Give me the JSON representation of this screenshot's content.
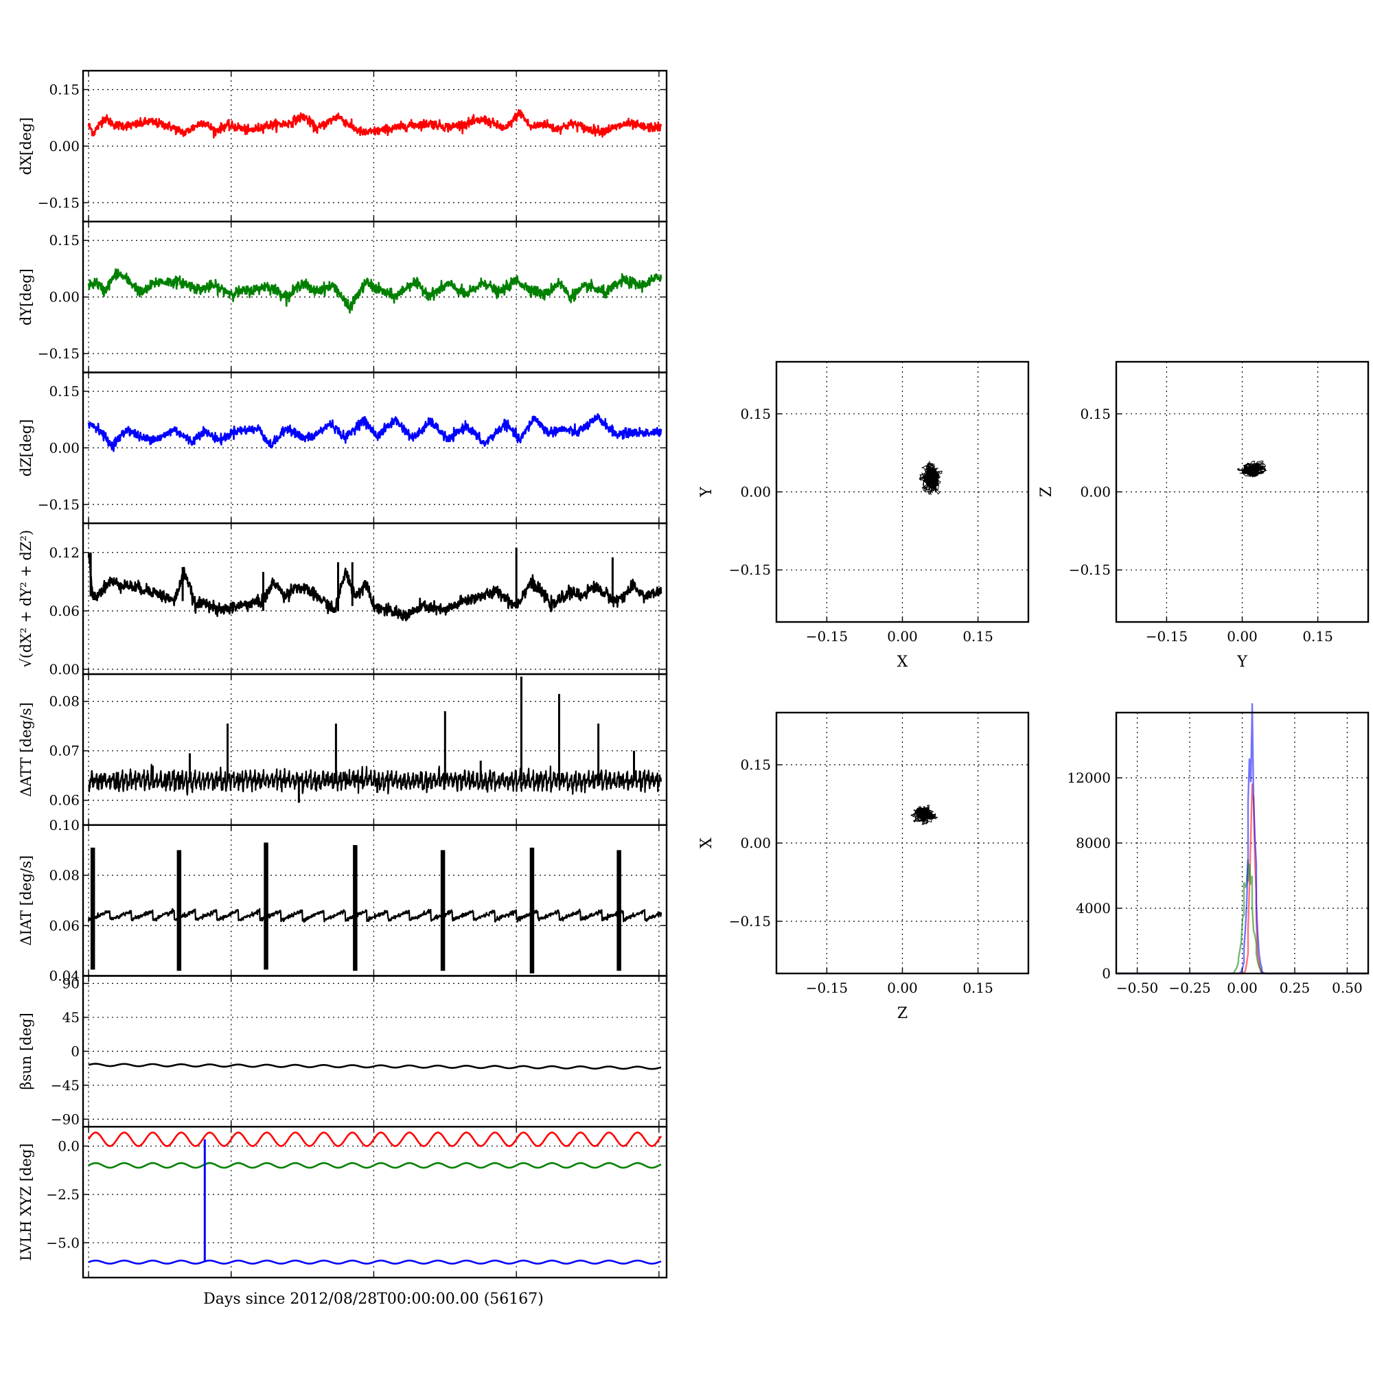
{
  "figure": {
    "xlabel": "Days since 2012/08/28T00:00:00.00 (56167)",
    "colors": {
      "x": "#ff0000",
      "y": "#008000",
      "z": "#0000ff",
      "black": "#000000"
    }
  },
  "chart_data": [
    {
      "type": "line",
      "ylabel": "dX[deg]",
      "ylim": [
        -0.2,
        0.2
      ],
      "yticks": [
        0.15,
        0.0,
        -0.15
      ],
      "ytick_labels": [
        "0.15",
        "0.00",
        "−0.15"
      ],
      "grid": true,
      "xlim": [
        0,
        8.03
      ],
      "x_gridlines": [
        0,
        2,
        4,
        6,
        8
      ],
      "series": [
        {
          "color": "#ff0000",
          "noise": 0.006,
          "x": [
            0,
            0.07,
            0.22,
            0.38,
            0.62,
            0.85,
            1.1,
            1.35,
            1.6,
            1.78,
            1.92,
            2.1,
            2.25,
            2.5,
            2.8,
            3.02,
            3.2,
            3.5,
            3.7,
            3.85,
            4.05,
            4.2,
            4.5,
            4.8,
            5.05,
            5.3,
            5.55,
            5.85,
            6.05,
            6.2,
            6.4,
            6.55,
            6.8,
            7.0,
            7.2,
            7.4,
            7.55,
            7.8,
            8.03
          ],
          "y": [
            0.055,
            0.035,
            0.075,
            0.055,
            0.055,
            0.065,
            0.055,
            0.035,
            0.065,
            0.04,
            0.055,
            0.05,
            0.04,
            0.055,
            0.06,
            0.08,
            0.045,
            0.08,
            0.05,
            0.035,
            0.04,
            0.045,
            0.055,
            0.06,
            0.05,
            0.06,
            0.07,
            0.045,
            0.09,
            0.05,
            0.06,
            0.045,
            0.06,
            0.045,
            0.04,
            0.05,
            0.06,
            0.05,
            0.05
          ]
        }
      ]
    },
    {
      "type": "line",
      "ylabel": "dY[deg]",
      "ylim": [
        -0.2,
        0.2
      ],
      "yticks": [
        0.15,
        0.0,
        -0.15
      ],
      "ytick_labels": [
        "0.15",
        "0.00",
        "−0.15"
      ],
      "grid": true,
      "xlim": [
        0,
        8.03
      ],
      "x_gridlines": [
        0,
        2,
        4,
        6,
        8
      ],
      "series": [
        {
          "color": "#008000",
          "noise": 0.007,
          "x": [
            0,
            0.1,
            0.22,
            0.4,
            0.55,
            0.75,
            0.95,
            1.3,
            1.55,
            1.75,
            2.0,
            2.35,
            2.5,
            2.8,
            3.0,
            3.15,
            3.45,
            3.65,
            3.9,
            4.0,
            4.3,
            4.55,
            4.8,
            5.05,
            5.3,
            5.55,
            5.75,
            6.0,
            6.15,
            6.4,
            6.6,
            6.75,
            7.0,
            7.25,
            7.5,
            7.75,
            8.03
          ],
          "y": [
            0.03,
            0.04,
            0.015,
            0.065,
            0.045,
            0.01,
            0.04,
            0.04,
            0.02,
            0.03,
            0.01,
            0.02,
            0.03,
            0.0,
            0.04,
            0.015,
            0.03,
            -0.03,
            0.04,
            0.025,
            0.0,
            0.04,
            0.005,
            0.035,
            0.005,
            0.04,
            0.01,
            0.045,
            0.025,
            0.005,
            0.04,
            0.0,
            0.03,
            0.01,
            0.045,
            0.03,
            0.055
          ]
        }
      ]
    },
    {
      "type": "line",
      "ylabel": "dZ[deg]",
      "ylim": [
        -0.2,
        0.2
      ],
      "yticks": [
        0.15,
        0.0,
        -0.15
      ],
      "ytick_labels": [
        "0.15",
        "0.00",
        "−0.15"
      ],
      "grid": true,
      "xlim": [
        0,
        8.03
      ],
      "x_gridlines": [
        0,
        2,
        4,
        6,
        8
      ],
      "series": [
        {
          "color": "#0000ff",
          "noise": 0.006,
          "x": [
            0,
            0.15,
            0.32,
            0.55,
            0.75,
            1.0,
            1.2,
            1.45,
            1.6,
            1.85,
            2.05,
            2.4,
            2.55,
            2.8,
            3.0,
            3.15,
            3.4,
            3.6,
            3.85,
            4.05,
            4.3,
            4.55,
            4.8,
            5.05,
            5.3,
            5.55,
            5.85,
            6.05,
            6.25,
            6.45,
            6.65,
            6.85,
            7.15,
            7.4,
            7.6,
            8.03
          ],
          "y": [
            0.065,
            0.05,
            0.005,
            0.05,
            0.025,
            0.025,
            0.05,
            0.015,
            0.045,
            0.02,
            0.045,
            0.05,
            0.005,
            0.055,
            0.025,
            0.03,
            0.065,
            0.025,
            0.075,
            0.03,
            0.075,
            0.025,
            0.07,
            0.02,
            0.06,
            0.01,
            0.065,
            0.02,
            0.08,
            0.04,
            0.05,
            0.04,
            0.08,
            0.035,
            0.04,
            0.04
          ]
        }
      ]
    },
    {
      "type": "line",
      "ylabel": "√(dX² + dY² + dZ²)",
      "ylim": [
        -0.005,
        0.15
      ],
      "yticks": [
        0.12,
        0.06,
        0.0
      ],
      "ytick_labels": [
        "0.12",
        "0.06",
        "0.00"
      ],
      "grid": true,
      "xlim": [
        0,
        8.03
      ],
      "x_gridlines": [
        0,
        2,
        4,
        6,
        8
      ],
      "series": [
        {
          "color": "#000000",
          "noise": 0.003,
          "x": [
            0,
            0.05,
            0.1,
            0.3,
            0.6,
            0.9,
            1.2,
            1.35,
            1.5,
            1.65,
            1.8,
            2.1,
            2.45,
            2.6,
            2.75,
            2.9,
            3.1,
            3.3,
            3.45,
            3.6,
            3.75,
            3.9,
            4.0,
            4.2,
            4.45,
            4.7,
            5.0,
            5.25,
            5.5,
            5.75,
            5.9,
            6.0,
            6.2,
            6.4,
            6.5,
            6.75,
            6.9,
            7.1,
            7.4,
            7.65,
            7.8,
            8.03
          ],
          "y": [
            0.12,
            0.08,
            0.075,
            0.09,
            0.085,
            0.08,
            0.07,
            0.1,
            0.065,
            0.07,
            0.06,
            0.065,
            0.07,
            0.09,
            0.075,
            0.085,
            0.08,
            0.07,
            0.06,
            0.1,
            0.075,
            0.09,
            0.065,
            0.06,
            0.055,
            0.065,
            0.06,
            0.07,
            0.075,
            0.08,
            0.07,
            0.065,
            0.09,
            0.075,
            0.065,
            0.08,
            0.075,
            0.085,
            0.07,
            0.085,
            0.075,
            0.08
          ]
        }
      ],
      "spikes": [
        {
          "x": 0.03,
          "top": 0.12,
          "bottom": 0.075
        },
        {
          "x": 1.32,
          "top": 0.105,
          "bottom": 0.07
        },
        {
          "x": 2.45,
          "top": 0.1,
          "bottom": 0.06
        },
        {
          "x": 3.5,
          "top": 0.11,
          "bottom": 0.06
        },
        {
          "x": 3.7,
          "top": 0.11,
          "bottom": 0.065
        },
        {
          "x": 6.0,
          "top": 0.125,
          "bottom": 0.065
        },
        {
          "x": 7.35,
          "top": 0.115,
          "bottom": 0.075
        }
      ]
    },
    {
      "type": "line",
      "ylabel": "ΔATT [deg/s]",
      "ylim": [
        0.055,
        0.0855
      ],
      "yticks": [
        0.08,
        0.07,
        0.06
      ],
      "ytick_labels": [
        "0.08",
        "0.07",
        "0.06"
      ],
      "grid": true,
      "xlim": [
        0,
        8.03
      ],
      "x_gridlines": [
        0,
        2,
        4,
        6,
        8
      ],
      "series": [
        {
          "color": "#000000",
          "noise": 0.0006,
          "sawtooth": {
            "period": 0.06,
            "amplitude": 0.0025
          },
          "x": [
            0,
            8.03
          ],
          "y": [
            0.064,
            0.064
          ]
        }
      ],
      "spikes": [
        {
          "x": 0.35,
          "top": 0.0655,
          "bottom": 0.064
        },
        {
          "x": 0.9,
          "top": 0.067,
          "bottom": 0.064
        },
        {
          "x": 1.42,
          "top": 0.0695,
          "bottom": 0.064
        },
        {
          "x": 1.95,
          "top": 0.0755,
          "bottom": 0.064
        },
        {
          "x": 2.95,
          "top": 0.064,
          "bottom": 0.0595
        },
        {
          "x": 3.47,
          "top": 0.0755,
          "bottom": 0.064
        },
        {
          "x": 4.05,
          "top": 0.0645,
          "bottom": 0.0615
        },
        {
          "x": 5.0,
          "top": 0.078,
          "bottom": 0.064
        },
        {
          "x": 5.5,
          "top": 0.068,
          "bottom": 0.064
        },
        {
          "x": 6.07,
          "top": 0.085,
          "bottom": 0.064
        },
        {
          "x": 6.6,
          "top": 0.0815,
          "bottom": 0.064
        },
        {
          "x": 7.15,
          "top": 0.0755,
          "bottom": 0.064
        },
        {
          "x": 7.65,
          "top": 0.07,
          "bottom": 0.064
        }
      ]
    },
    {
      "type": "line",
      "ylabel": "ΔIAT [deg/s]",
      "ylim": [
        0.04,
        0.1
      ],
      "yticks": [
        0.1,
        0.08,
        0.06,
        0.04
      ],
      "ytick_labels": [
        "0.10",
        "0.08",
        "0.06",
        "0.04"
      ],
      "grid": true,
      "xlim": [
        0,
        8.03
      ],
      "x_gridlines": [
        0,
        2,
        4,
        6,
        8
      ],
      "series": [
        {
          "color": "#000000",
          "noise": 0.0004,
          "sawtooth": {
            "period": 0.3,
            "amplitude": 0.003
          },
          "x": [
            0,
            8.03
          ],
          "y": [
            0.064,
            0.064
          ]
        }
      ],
      "bursts": [
        {
          "x": 0.04,
          "top": 0.091,
          "bottom": 0.0425
        },
        {
          "x": 1.25,
          "top": 0.09,
          "bottom": 0.042
        },
        {
          "x": 2.47,
          "top": 0.093,
          "bottom": 0.0425
        },
        {
          "x": 3.72,
          "top": 0.092,
          "bottom": 0.042
        },
        {
          "x": 4.95,
          "top": 0.09,
          "bottom": 0.042
        },
        {
          "x": 6.2,
          "top": 0.091,
          "bottom": 0.041
        },
        {
          "x": 7.42,
          "top": 0.09,
          "bottom": 0.042
        }
      ]
    },
    {
      "type": "line",
      "ylabel": "βsun [deg]",
      "ylim": [
        -100,
        100
      ],
      "yticks": [
        90,
        45,
        0,
        -45,
        -90
      ],
      "ytick_labels": [
        "90",
        "45",
        "0",
        "−45",
        "−90"
      ],
      "grid": true,
      "xlim": [
        0,
        8.03
      ],
      "x_gridlines": [
        0,
        2,
        4,
        6,
        8
      ],
      "series": [
        {
          "color": "#000000",
          "noise": 0,
          "wave": {
            "base_start": -18,
            "base_end": -22,
            "period": 0.4,
            "amplitude": 1.5
          },
          "x": [
            0,
            8.03
          ],
          "y": [
            -18,
            -22
          ]
        }
      ]
    },
    {
      "type": "line",
      "ylabel": "LVLH XYZ [deg]",
      "ylim": [
        -6.8,
        1.0
      ],
      "yticks": [
        0.0,
        -2.5,
        -5.0
      ],
      "ytick_labels": [
        "0.0",
        "−2.5",
        "−5.0"
      ],
      "grid": true,
      "xlim": [
        0,
        8.03
      ],
      "x_gridlines": [
        0,
        2,
        4,
        6,
        8
      ],
      "series": [
        {
          "color": "#ff0000",
          "noise": 0,
          "wave": {
            "base_start": 0.35,
            "base_end": 0.35,
            "period": 0.4,
            "amplitude": 0.35
          },
          "x": [
            0,
            8.03
          ],
          "y": [
            0.35,
            0.35
          ]
        },
        {
          "color": "#008000",
          "noise": 0,
          "wave": {
            "base_start": -1.0,
            "base_end": -1.0,
            "period": 0.4,
            "amplitude": 0.12
          },
          "x": [
            0,
            8.03
          ],
          "y": [
            -1.0,
            -1.0
          ]
        },
        {
          "color": "#0000ff",
          "noise": 0,
          "wave": {
            "base_start": -6.0,
            "base_end": -6.0,
            "period": 0.4,
            "amplitude": 0.08
          },
          "x": [
            0,
            8.03
          ],
          "y": [
            -6.0,
            -6.0
          ]
        }
      ],
      "spikes": [
        {
          "x": 1.63,
          "top": 0.35,
          "bottom": -6.0,
          "color": "#0000ff"
        }
      ]
    }
  ],
  "scatter_panels": [
    {
      "type": "scatter",
      "xlabel": "X",
      "ylabel": "Y",
      "xlim": [
        -0.25,
        0.25
      ],
      "ylim": [
        -0.25,
        0.25
      ],
      "ticks": [
        -0.15,
        0.0,
        0.15
      ],
      "tick_labels": [
        "−0.15",
        "0.00",
        "0.15"
      ],
      "grid": true,
      "cluster": {
        "cx": 0.057,
        "cy": 0.026,
        "sx": 0.012,
        "sy": 0.018,
        "n": 1200
      }
    },
    {
      "type": "scatter",
      "xlabel": "Y",
      "ylabel": "Z",
      "xlim": [
        -0.25,
        0.25
      ],
      "ylim": [
        -0.25,
        0.25
      ],
      "ticks": [
        -0.15,
        0.0,
        0.15
      ],
      "tick_labels": [
        "−0.15",
        "0.00",
        "0.15"
      ],
      "grid": true,
      "cluster": {
        "cx": 0.02,
        "cy": 0.042,
        "sx": 0.017,
        "sy": 0.01,
        "n": 1200
      }
    },
    {
      "type": "scatter",
      "xlabel": "Z",
      "ylabel": "X",
      "xlim": [
        -0.25,
        0.25
      ],
      "ylim": [
        -0.25,
        0.25
      ],
      "ticks": [
        -0.15,
        0.0,
        0.15
      ],
      "tick_labels": [
        "−0.15",
        "0.00",
        "0.15"
      ],
      "grid": true,
      "cluster": {
        "cx": 0.042,
        "cy": 0.055,
        "sx": 0.014,
        "sy": 0.01,
        "n": 1200
      }
    }
  ],
  "histogram": {
    "type": "histogram",
    "xlim": [
      -0.6,
      0.6
    ],
    "ylim": [
      0,
      16000
    ],
    "xticks": [
      -0.5,
      -0.25,
      0.0,
      0.25,
      0.5
    ],
    "xtick_labels": [
      "−0.50",
      "−0.25",
      "0.00",
      "0.25",
      "0.50"
    ],
    "yticks": [
      12000,
      8000,
      4000,
      0
    ],
    "ytick_labels": [
      "12000",
      "8000",
      "4000",
      "0"
    ],
    "grid": true,
    "series": [
      {
        "color": "#ff0000",
        "mean": 0.05,
        "sigma": 0.012,
        "peak": 12000
      },
      {
        "color": "#008000",
        "mean": 0.028,
        "sigma": 0.022,
        "peak": 6800
      },
      {
        "color": "#0000ff",
        "mean": 0.045,
        "sigma": 0.016,
        "peak": 15000
      }
    ]
  }
}
